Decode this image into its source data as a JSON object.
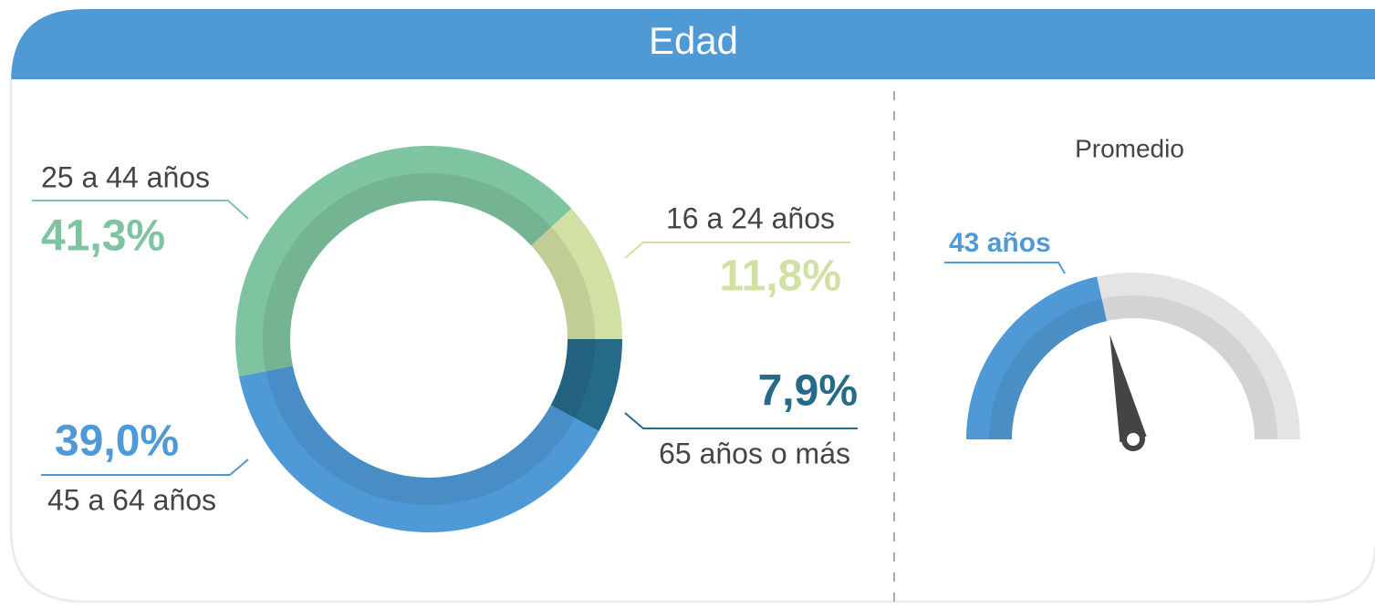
{
  "header": {
    "title": "Edad"
  },
  "chart_data": [
    {
      "type": "donut",
      "categories": [
        "65 años o más",
        "45 a 64 años",
        "25 a 44 años",
        "16 a 24 años"
      ],
      "values": [
        7.9,
        39.0,
        41.3,
        11.8
      ],
      "value_labels": [
        "7,9%",
        "39,0%",
        "41,3%",
        "11,8%"
      ],
      "colors": [
        "#256b89",
        "#4f9ad6",
        "#7fc4a0",
        "#d1e0a3"
      ]
    },
    {
      "type": "gauge",
      "title": "Promedio",
      "value": 43,
      "value_label": "43 años",
      "ylim": [
        0,
        100
      ],
      "color": "#4f9ad6",
      "track_color": "#e4e4e4"
    }
  ]
}
